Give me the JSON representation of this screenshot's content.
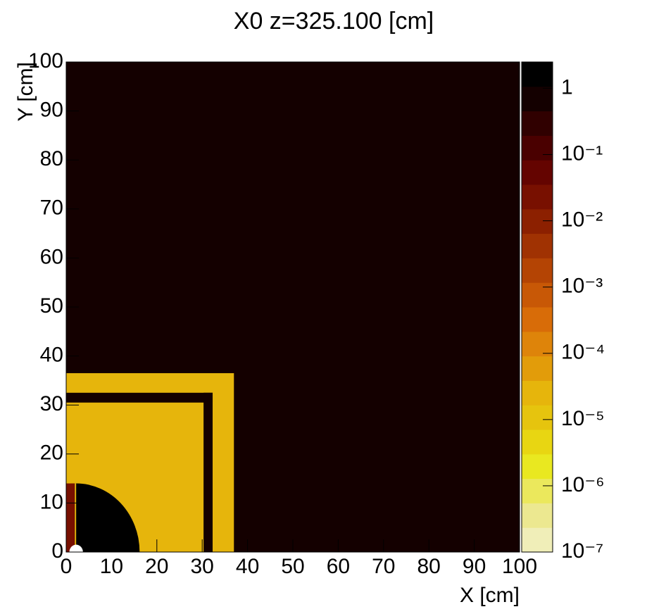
{
  "chart_data": {
    "type": "heatmap",
    "title": "X0 z=325.100 [cm]",
    "x_label": "X [cm]",
    "y_label": "Y [cm]",
    "xlim": [
      0,
      100
    ],
    "ylim": [
      0,
      100
    ],
    "xticks": [
      0,
      10,
      20,
      30,
      40,
      50,
      60,
      70,
      80,
      90,
      100
    ],
    "yticks": [
      0,
      10,
      20,
      30,
      40,
      50,
      60,
      70,
      80,
      90,
      100
    ],
    "zlim": [
      1e-07,
      2.5
    ],
    "zlog": true,
    "zticks": [
      1,
      {
        "value": 0.1,
        "label": "10⁻¹"
      },
      {
        "value": 0.01,
        "label": "10⁻²"
      },
      {
        "value": 0.001,
        "label": "10⁻³"
      },
      {
        "value": 0.0001,
        "label": "10⁻⁴"
      },
      {
        "value": 1e-05,
        "label": "10⁻⁵"
      },
      {
        "value": 1e-06,
        "label": "10⁻⁶"
      },
      {
        "value": 1e-07,
        "label": "10⁻⁷"
      }
    ],
    "palette": [
      "#f0eeb8",
      "#ece890",
      "#ebe85c",
      "#e9e820",
      "#e8d612",
      "#e6c40e",
      "#e6b50c",
      "#e29c0a",
      "#de840a",
      "#d86c08",
      "#c85806",
      "#b44404",
      "#a03202",
      "#8c2000",
      "#781000",
      "#640400",
      "#4a0000",
      "#300000",
      "#140000",
      "#000000"
    ],
    "regions": [
      {
        "shape": "rect",
        "x": [
          0,
          100
        ],
        "y": [
          0,
          100
        ],
        "z": 0.6
      },
      {
        "shape": "rect",
        "x": [
          0,
          37
        ],
        "y": [
          0,
          36.5
        ],
        "z": 2.5e-05
      },
      {
        "shape": "rect",
        "x": [
          0,
          32.3
        ],
        "y": [
          30.5,
          32.5
        ],
        "z": 0.6
      },
      {
        "shape": "rect",
        "x": [
          30.3,
          32.3
        ],
        "y": [
          0,
          32.5
        ],
        "z": 0.6
      },
      {
        "shape": "circle",
        "x": [
          2.2
        ],
        "y": [
          0
        ],
        "r": 14,
        "z": 2.4
      },
      {
        "shape": "rect",
        "x": [
          0,
          1.9
        ],
        "y": [
          0,
          14
        ],
        "z": 0.03
      },
      {
        "shape": "rect",
        "x": [
          1.9,
          2.2
        ],
        "y": [
          0,
          14
        ],
        "z": 2.5e-05
      },
      {
        "shape": "circle",
        "x": [
          2.2
        ],
        "y": [
          0
        ],
        "r": 1.5,
        "z": null
      }
    ]
  }
}
